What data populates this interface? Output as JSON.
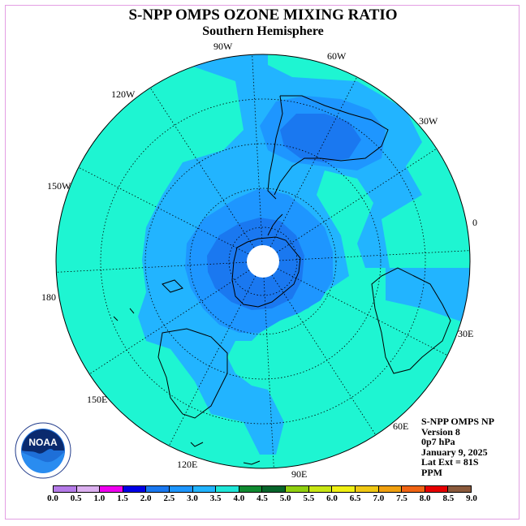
{
  "title": "S-NPP OMPS OZONE MIXING RATIO",
  "subtitle": "Southern Hemisphere",
  "longitude_labels": {
    "l90w": "90W",
    "l60w": "60W",
    "l30w": "30W",
    "l0": "0",
    "l30e": "30E",
    "l60e": "60E",
    "l90e": "90E",
    "l120e": "120E",
    "l150e": "150E",
    "l180": "180",
    "l150w": "150W",
    "l120w": "120W"
  },
  "info": {
    "line1": "S-NPP OMPS NP",
    "line2": "Version 8",
    "line3": "0p7 hPa",
    "line4": "January 9, 2025",
    "line5": "Lat Ext = 81S",
    "line6": "PPM"
  },
  "logo_text": "NOAA",
  "logo_ring_text": "NATIONAL OCEANIC AND ATMOSPHERIC ADMINISTRATION",
  "logo_bottom_text": "U.S. DEPARTMENT OF COMMERCE",
  "colorbar": {
    "colors": [
      "#b57be8",
      "#dcb0f0",
      "#f000f0",
      "#0000e6",
      "#1a78f0",
      "#1e96ff",
      "#22b4ff",
      "#20e6d8",
      "#108a30",
      "#06642a",
      "#90d010",
      "#c8e614",
      "#f0f014",
      "#f0c814",
      "#f0a010",
      "#f06414",
      "#e60000",
      "#8b5a3c"
    ],
    "ticks": [
      "0.0",
      "0.5",
      "1.0",
      "1.5",
      "2.0",
      "2.5",
      "3.0",
      "3.5",
      "4.0",
      "4.5",
      "5.0",
      "5.5",
      "6.0",
      "6.5",
      "7.0",
      "7.5",
      "8.0",
      "8.5",
      "9.0"
    ]
  },
  "map_colors": {
    "c35": "#1ef5d2",
    "c30": "#22b4ff",
    "c25": "#1e96ff",
    "c20": "#1a78f0",
    "pole": "#ffffff"
  }
}
